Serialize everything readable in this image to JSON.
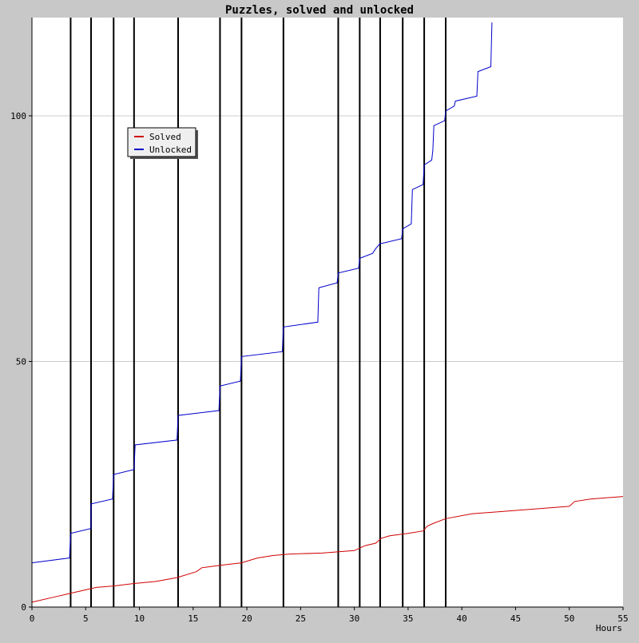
{
  "chart_data": {
    "type": "line",
    "title": "Puzzles, solved and unlocked",
    "xlabel": "Hours",
    "ylabel": "",
    "xlim": [
      0,
      55
    ],
    "ylim": [
      0,
      120
    ],
    "x_ticks": [
      0,
      5,
      10,
      15,
      20,
      25,
      30,
      35,
      40,
      45,
      50,
      55
    ],
    "y_ticks": [
      0,
      50,
      100
    ],
    "grid": "horizontal at y ticks",
    "legend_position": "top-left",
    "vertical_markers": [
      3.6,
      5.5,
      7.6,
      9.5,
      13.6,
      17.5,
      19.5,
      23.4,
      28.5,
      30.5,
      32.4,
      34.5,
      36.5,
      38.5
    ],
    "series": [
      {
        "name": "Solved",
        "color": "#d00000",
        "x": [
          0,
          2,
          4,
          6,
          7.6,
          9.5,
          11.5,
          13.5,
          15.3,
          15.8,
          17.5,
          19.5,
          21,
          22.5,
          24,
          27,
          30,
          31,
          32,
          32.5,
          33.3,
          35,
          36.4,
          36.8,
          37.3,
          38.5,
          41,
          44,
          47,
          50,
          50.5,
          52,
          55
        ],
        "y": [
          1,
          2,
          3,
          4,
          4.3,
          4.8,
          5.2,
          6,
          7.2,
          8,
          8.5,
          9,
          10,
          10.5,
          10.8,
          11,
          11.5,
          12.5,
          13,
          14,
          14.5,
          15,
          15.5,
          16.5,
          17,
          18,
          19,
          19.5,
          20,
          20.5,
          21.5,
          22,
          22.5
        ]
      },
      {
        "name": "Unlocked",
        "color": "#0000cc",
        "x": [
          0,
          3.5,
          3.6,
          5.5,
          5.5,
          7.5,
          7.6,
          9.5,
          9.6,
          13.5,
          13.6,
          17.4,
          17.5,
          19.4,
          19.5,
          23.3,
          23.4,
          26.6,
          26.7,
          28.4,
          28.5,
          30.4,
          30.5,
          31.7,
          32.0,
          32.4,
          32.5,
          34.4,
          34.5,
          35.3,
          35.4,
          36.4,
          36.5,
          37.2,
          37.3,
          37.4,
          38.4,
          38.5,
          39.3,
          39.4,
          41.4,
          41.5,
          42.7,
          42.8
        ],
        "y": [
          9,
          10,
          15,
          16,
          21,
          22,
          27,
          28,
          33,
          34,
          39,
          40,
          45,
          46,
          51,
          52,
          57,
          58,
          65,
          66,
          68,
          69,
          71,
          72,
          73,
          74,
          74,
          75,
          77,
          78,
          85,
          86,
          90,
          91,
          93,
          98,
          99,
          101,
          102,
          103,
          104,
          109,
          110,
          119
        ]
      }
    ]
  }
}
